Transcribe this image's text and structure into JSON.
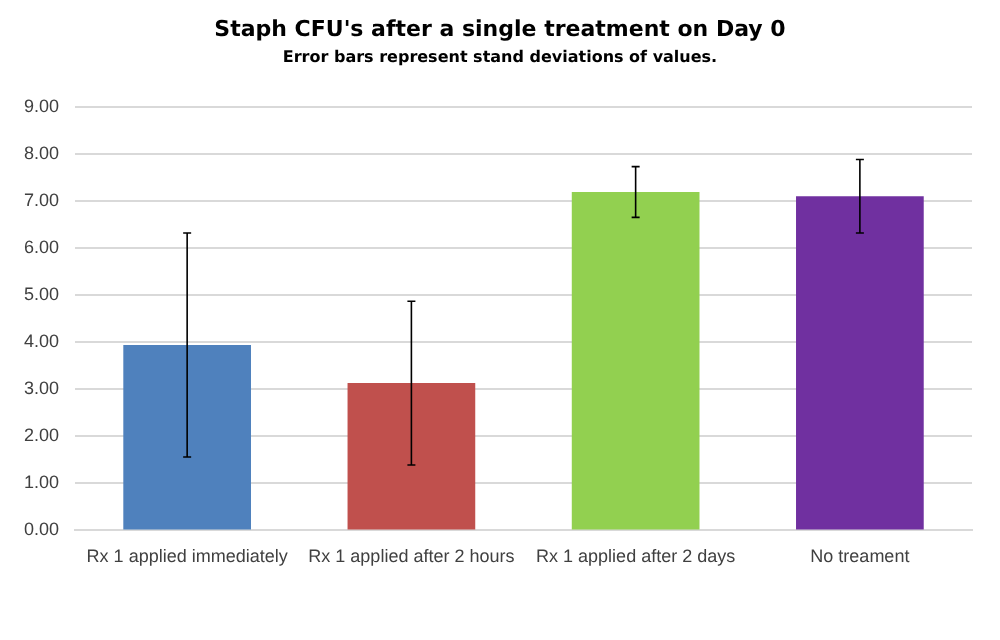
{
  "chart_data": {
    "type": "bar",
    "title": "Staph CFU's after a single treatment on Day 0",
    "subtitle": "Error bars represent stand deviations of values.",
    "categories": [
      "Rx 1 applied immediately",
      "Rx 1 applied after 2 hours",
      "Rx 1 applied after 2 days",
      "No treament"
    ],
    "values": [
      3.94,
      3.13,
      7.19,
      7.1
    ],
    "colors": [
      "#4f81bd",
      "#c0504d",
      "#92d050",
      "#7030a0"
    ],
    "errors": [
      2.38,
      1.74,
      0.54,
      0.78
    ],
    "ylim": [
      0,
      9
    ],
    "yticks": [
      {
        "value": 0,
        "label": "0.00"
      },
      {
        "value": 1,
        "label": "1.00"
      },
      {
        "value": 2,
        "label": "2.00"
      },
      {
        "value": 3,
        "label": "3.00"
      },
      {
        "value": 4,
        "label": "4.00"
      },
      {
        "value": 5,
        "label": "5.00"
      },
      {
        "value": 6,
        "label": "6.00"
      },
      {
        "value": 7,
        "label": "7.00"
      },
      {
        "value": 8,
        "label": "8.00"
      },
      {
        "value": 9,
        "label": "9.00"
      }
    ],
    "grid": "y",
    "legend": false
  }
}
